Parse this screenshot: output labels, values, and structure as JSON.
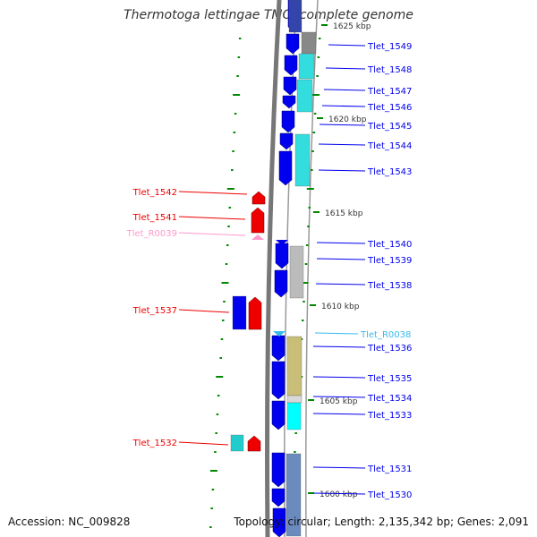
{
  "title": "Thermotoga lettingae TMO, complete genome",
  "accession": "Accession: NC_009828",
  "topology": "Topology: circular; Length: 2,135,342 bp; Genes: 2,091",
  "colors": {
    "blue": "#0000ee",
    "red": "#ee0000",
    "pink": "#ff99cc",
    "lightblue": "#33bbee",
    "cyan": "#33dddd",
    "gray": "#888888",
    "lightgray": "#bbbbbb",
    "khaki": "#c8be78",
    "steel": "#6b8bbf",
    "tick": "#008800"
  },
  "kbp_labels": [
    {
      "text": "1625 kbp"
    },
    {
      "text": "1620 kbp"
    },
    {
      "text": "1615 kbp"
    },
    {
      "text": "1610 kbp"
    },
    {
      "text": "1605 kbp"
    },
    {
      "text": "1600 kbp"
    }
  ],
  "genes_right": [
    {
      "label": "Tlet_1549",
      "color": "blue"
    },
    {
      "label": "Tlet_1548",
      "color": "blue"
    },
    {
      "label": "Tlet_1547",
      "color": "blue"
    },
    {
      "label": "Tlet_1546",
      "color": "blue"
    },
    {
      "label": "Tlet_1545",
      "color": "blue"
    },
    {
      "label": "Tlet_1544",
      "color": "blue"
    },
    {
      "label": "Tlet_1543",
      "color": "blue"
    },
    {
      "label": "Tlet_1540",
      "color": "blue"
    },
    {
      "label": "Tlet_1539",
      "color": "blue"
    },
    {
      "label": "Tlet_1538",
      "color": "blue"
    },
    {
      "label": "Tlet_R0038",
      "color": "lightblue"
    },
    {
      "label": "Tlet_1536",
      "color": "blue"
    },
    {
      "label": "Tlet_1535",
      "color": "blue"
    },
    {
      "label": "Tlet_1534",
      "color": "blue"
    },
    {
      "label": "Tlet_1533",
      "color": "blue"
    },
    {
      "label": "Tlet_1531",
      "color": "blue"
    },
    {
      "label": "Tlet_1530",
      "color": "blue"
    }
  ],
  "genes_left": [
    {
      "label": "Tlet_1542",
      "color": "red"
    },
    {
      "label": "Tlet_1541",
      "color": "red"
    },
    {
      "label": "Tlet_R0039",
      "color": "pink"
    },
    {
      "label": "Tlet_1537",
      "color": "red"
    },
    {
      "label": "Tlet_1532",
      "color": "red"
    }
  ]
}
